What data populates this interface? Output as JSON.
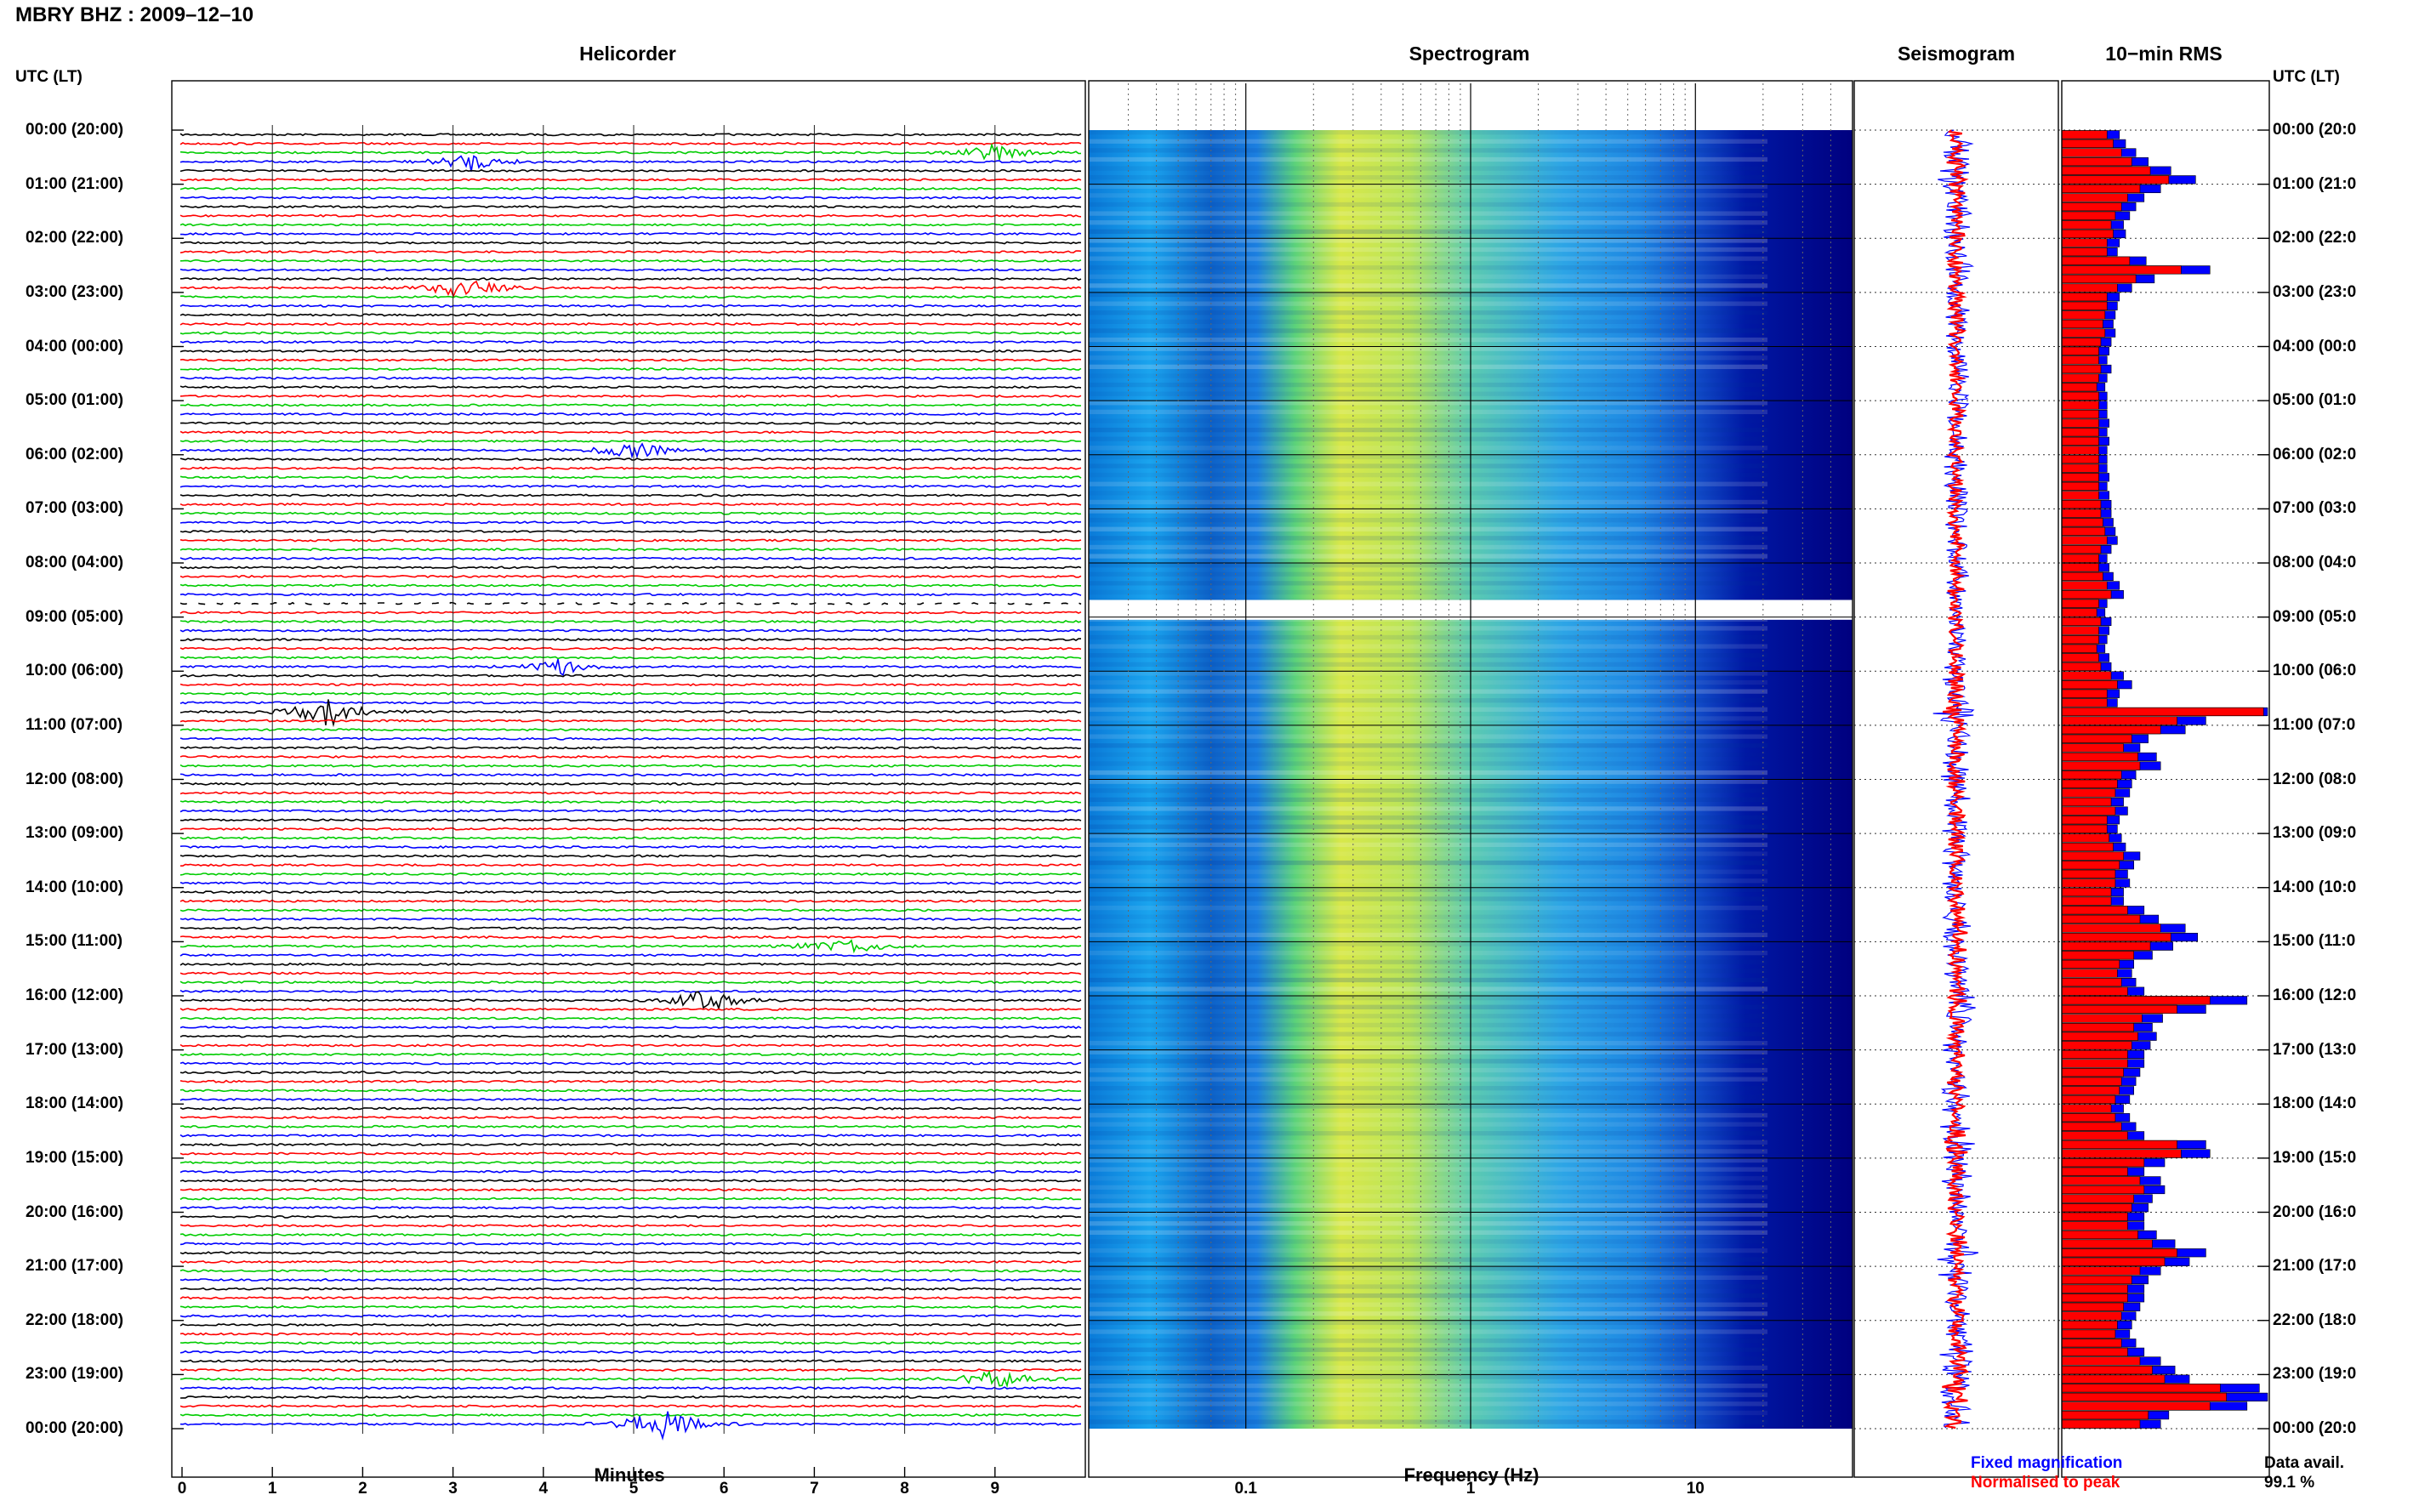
{
  "page_title": "MBRY BHZ : 2009–12–10",
  "timezone_label_left": "UTC (LT)",
  "timezone_label_right": "UTC (LT)",
  "panels": {
    "helicorder": "Helicorder",
    "spectrogram": "Spectrogram",
    "seismogram": "Seismogram",
    "rms": "10−min RMS"
  },
  "hour_labels": [
    "00:00 (20:00)",
    "01:00 (21:00)",
    "02:00 (22:00)",
    "03:00 (23:00)",
    "04:00 (00:00)",
    "05:00 (01:00)",
    "06:00 (02:00)",
    "07:00 (03:00)",
    "08:00 (04:00)",
    "09:00 (05:00)",
    "10:00 (06:00)",
    "11:00 (07:00)",
    "12:00 (08:00)",
    "13:00 (09:00)",
    "14:00 (10:00)",
    "15:00 (11:00)",
    "16:00 (12:00)",
    "17:00 (13:00)",
    "18:00 (14:00)",
    "19:00 (15:00)",
    "20:00 (16:00)",
    "21:00 (17:00)",
    "22:00 (18:00)",
    "23:00 (19:00)",
    "00:00 (20:00)"
  ],
  "hour_labels_right": [
    "00:00 (20:0",
    "01:00 (21:0",
    "02:00 (22:0",
    "03:00 (23:0",
    "04:00 (00:0",
    "05:00 (01:0",
    "06:00 (02:0",
    "07:00 (03:0",
    "08:00 (04:0",
    "09:00 (05:0",
    "10:00 (06:0",
    "11:00 (07:0",
    "12:00 (08:0",
    "13:00 (09:0",
    "14:00 (10:0",
    "15:00 (11:0",
    "16:00 (12:0",
    "17:00 (13:0",
    "18:00 (14:0",
    "19:00 (15:0",
    "20:00 (16:0",
    "21:00 (17:0",
    "22:00 (18:0",
    "23:00 (19:0",
    "00:00 (20:0"
  ],
  "minute_ticks": [
    "0",
    "1",
    "2",
    "3",
    "4",
    "5",
    "6",
    "7",
    "8",
    "9"
  ],
  "frequency_ticks": [
    "0.1",
    "1",
    "10"
  ],
  "xlabel_helicorder": "Minutes",
  "xlabel_spectrogram": "Frequency (Hz)",
  "legend": {
    "fixed": "Fixed magnification",
    "normalised": "Normalised to peak",
    "data_avail_label": "Data avail.",
    "data_avail_value": "99.1 %"
  },
  "colors": {
    "trace_cycle": [
      "#000000",
      "#ff0000",
      "#00cc00",
      "#0000ff"
    ],
    "fixed": "#0000ff",
    "normalised": "#ff0000",
    "spectro_low": "#00007f",
    "spectro_mid": "#00aaff",
    "spectro_high": "#ffff00"
  },
  "chart_data": [
    {
      "type": "line",
      "panel": "helicorder",
      "xlabel": "Minutes",
      "xlim": [
        0,
        10
      ],
      "lines_per_hour": 6,
      "hours": 24,
      "data_gap_line": 52,
      "events": [
        {
          "line": 2,
          "minute": 9.0,
          "amp": 2.0
        },
        {
          "line": 3,
          "minute": 3.2,
          "amp": 2.2
        },
        {
          "line": 17,
          "minute": 3.1,
          "amp": 3.0
        },
        {
          "line": 35,
          "minute": 5.0,
          "amp": 2.5
        },
        {
          "line": 59,
          "minute": 4.2,
          "amp": 2.0
        },
        {
          "line": 64,
          "minute": 1.6,
          "amp": 4.0
        },
        {
          "line": 90,
          "minute": 7.3,
          "amp": 2.8
        },
        {
          "line": 96,
          "minute": 5.8,
          "amp": 3.0
        },
        {
          "line": 138,
          "minute": 9.0,
          "amp": 2.5
        },
        {
          "line": 143,
          "minute": 5.3,
          "amp": 5.0
        }
      ]
    },
    {
      "type": "heatmap",
      "panel": "spectrogram",
      "xlabel": "Frequency (Hz)",
      "xscale": "log",
      "xlim": [
        0.02,
        50
      ],
      "data_gap_line": 52
    },
    {
      "type": "line",
      "panel": "seismogram",
      "series": [
        {
          "name": "Fixed magnification",
          "color": "#0000ff"
        },
        {
          "name": "Normalised to peak",
          "color": "#ff0000"
        }
      ]
    },
    {
      "type": "bar",
      "panel": "rms",
      "series": [
        {
          "name": "Fixed magnification",
          "color": "#0000ff",
          "values": [
            0.28,
            0.31,
            0.36,
            0.42,
            0.53,
            0.65,
            0.48,
            0.4,
            0.36,
            0.33,
            0.3,
            0.31,
            0.28,
            0.27,
            0.41,
            0.72,
            0.45,
            0.34,
            0.28,
            0.27,
            0.26,
            0.25,
            0.26,
            0.24,
            0.23,
            0.22,
            0.24,
            0.22,
            0.21,
            0.22,
            0.22,
            0.22,
            0.23,
            0.22,
            0.23,
            0.22,
            0.22,
            0.22,
            0.23,
            0.22,
            0.23,
            0.24,
            0.24,
            0.25,
            0.26,
            0.27,
            0.24,
            0.22,
            0.23,
            0.25,
            0.28,
            0.3,
            0.22,
            0.21,
            0.24,
            0.23,
            0.22,
            0.21,
            0.23,
            0.24,
            0.3,
            0.34,
            0.28,
            0.27,
            1.0,
            0.7,
            0.6,
            0.42,
            0.38,
            0.46,
            0.48,
            0.36,
            0.34,
            0.33,
            0.3,
            0.32,
            0.28,
            0.27,
            0.29,
            0.31,
            0.38,
            0.35,
            0.32,
            0.33,
            0.3,
            0.3,
            0.4,
            0.47,
            0.6,
            0.66,
            0.54,
            0.44,
            0.35,
            0.34,
            0.36,
            0.4,
            0.9,
            0.7,
            0.49,
            0.44,
            0.46,
            0.43,
            0.4,
            0.4,
            0.38,
            0.36,
            0.35,
            0.33,
            0.3,
            0.33,
            0.36,
            0.4,
            0.7,
            0.72,
            0.5,
            0.4,
            0.48,
            0.5,
            0.44,
            0.42,
            0.4,
            0.4,
            0.46,
            0.55,
            0.7,
            0.62,
            0.48,
            0.42,
            0.4,
            0.4,
            0.38,
            0.36,
            0.34,
            0.33,
            0.36,
            0.4,
            0.48,
            0.55,
            0.62,
            0.96,
            1.0,
            0.9,
            0.52,
            0.48
          ]
        },
        {
          "name": "Normalised to peak",
          "color": "#ff0000",
          "values": [
            0.22,
            0.25,
            0.29,
            0.34,
            0.43,
            0.52,
            0.38,
            0.32,
            0.29,
            0.26,
            0.24,
            0.25,
            0.22,
            0.22,
            0.33,
            0.58,
            0.36,
            0.27,
            0.22,
            0.22,
            0.21,
            0.2,
            0.21,
            0.19,
            0.18,
            0.18,
            0.19,
            0.18,
            0.17,
            0.18,
            0.18,
            0.18,
            0.18,
            0.18,
            0.18,
            0.18,
            0.18,
            0.18,
            0.18,
            0.18,
            0.18,
            0.19,
            0.19,
            0.2,
            0.21,
            0.22,
            0.19,
            0.18,
            0.18,
            0.2,
            0.22,
            0.24,
            0.18,
            0.17,
            0.19,
            0.18,
            0.18,
            0.17,
            0.18,
            0.19,
            0.24,
            0.27,
            0.22,
            0.22,
            0.98,
            0.56,
            0.48,
            0.34,
            0.3,
            0.37,
            0.38,
            0.29,
            0.27,
            0.26,
            0.24,
            0.26,
            0.22,
            0.22,
            0.23,
            0.25,
            0.3,
            0.28,
            0.26,
            0.26,
            0.24,
            0.24,
            0.32,
            0.38,
            0.48,
            0.53,
            0.43,
            0.35,
            0.28,
            0.27,
            0.29,
            0.32,
            0.72,
            0.56,
            0.39,
            0.35,
            0.37,
            0.34,
            0.32,
            0.32,
            0.3,
            0.29,
            0.28,
            0.26,
            0.24,
            0.26,
            0.29,
            0.32,
            0.56,
            0.58,
            0.4,
            0.32,
            0.38,
            0.4,
            0.35,
            0.34,
            0.32,
            0.32,
            0.37,
            0.44,
            0.56,
            0.5,
            0.38,
            0.34,
            0.32,
            0.32,
            0.3,
            0.29,
            0.27,
            0.26,
            0.29,
            0.32,
            0.38,
            0.44,
            0.5,
            0.77,
            0.8,
            0.72,
            0.42,
            0.38
          ]
        }
      ]
    }
  ]
}
